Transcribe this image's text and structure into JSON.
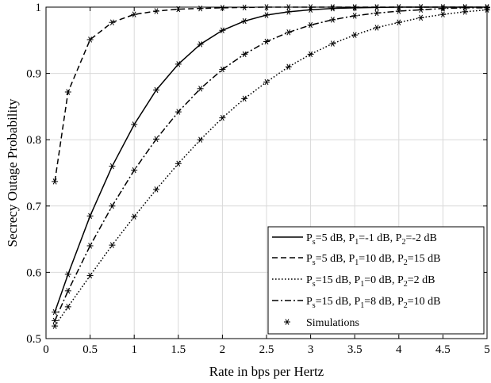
{
  "chart_data": {
    "type": "line",
    "title": "",
    "xlabel": "Rate in bps per Hertz",
    "ylabel": "Secrecy Outage Probability",
    "xlim": [
      0,
      5
    ],
    "ylim": [
      0.5,
      1
    ],
    "x_ticks": [
      0,
      0.5,
      1,
      1.5,
      2,
      2.5,
      3,
      3.5,
      4,
      4.5,
      5
    ],
    "x_tick_labels": [
      "0",
      "0.5",
      "1",
      "1.5",
      "2",
      "2.5",
      "3",
      "3.5",
      "4",
      "4.5",
      "5"
    ],
    "y_ticks": [
      0.5,
      0.6,
      0.7,
      0.8,
      0.9,
      1
    ],
    "y_tick_labels": [
      "0.5",
      "0.6",
      "0.7",
      "0.8",
      "0.9",
      "1"
    ],
    "grid": true,
    "legend_position": "bottom-right",
    "x": [
      0.1,
      0.25,
      0.5,
      0.75,
      1,
      1.25,
      1.5,
      1.75,
      2,
      2.25,
      2.5,
      2.75,
      3,
      3.25,
      3.5,
      3.75,
      4,
      4.25,
      4.5,
      4.75,
      5
    ],
    "series": [
      {
        "legend": {
          "p": "P",
          "s1": "s",
          "t1": "=5 dB, ",
          "p2": "P",
          "s2": "1",
          "t2": "=-1 dB, ",
          "p3": "P",
          "s3": "2",
          "t3": "=-2 dB"
        },
        "style": "solid",
        "values": [
          0.54,
          0.597,
          0.685,
          0.76,
          0.823,
          0.875,
          0.914,
          0.944,
          0.965,
          0.979,
          0.988,
          0.993,
          0.996,
          0.998,
          0.999,
          0.9995,
          1,
          1,
          1,
          1,
          1
        ]
      },
      {
        "legend": {
          "p": "P",
          "s1": "s",
          "t1": "=5 dB, ",
          "p2": "P",
          "s2": "1",
          "t2": "=10 dB, ",
          "p3": "P",
          "s3": "2",
          "t3": "=15 dB"
        },
        "style": "dashed",
        "values": [
          0.737,
          0.872,
          0.951,
          0.977,
          0.989,
          0.994,
          0.997,
          0.998,
          0.999,
          0.9995,
          1,
          1,
          1,
          1,
          1,
          1,
          1,
          1,
          1,
          1,
          1
        ]
      },
      {
        "legend": {
          "p": "P",
          "s1": "s",
          "t1": "=15 dB, ",
          "p2": "P",
          "s2": "1",
          "t2": "=0 dB, ",
          "p3": "P",
          "s3": "2",
          "t3": "=2 dB"
        },
        "style": "dotted",
        "values": [
          0.519,
          0.548,
          0.595,
          0.641,
          0.684,
          0.725,
          0.764,
          0.8,
          0.833,
          0.862,
          0.887,
          0.91,
          0.929,
          0.945,
          0.958,
          0.969,
          0.977,
          0.984,
          0.989,
          0.993,
          0.996
        ]
      },
      {
        "legend": {
          "p": "P",
          "s1": "s",
          "t1": "=15 dB, ",
          "p2": "P",
          "s2": "1",
          "t2": "=8 dB, ",
          "p3": "P",
          "s3": "2",
          "t3": "=10 dB"
        },
        "style": "dashdot",
        "values": [
          0.527,
          0.572,
          0.64,
          0.7,
          0.754,
          0.801,
          0.842,
          0.877,
          0.906,
          0.929,
          0.948,
          0.962,
          0.973,
          0.981,
          0.987,
          0.991,
          0.994,
          0.996,
          0.998,
          0.999,
          0.999
        ]
      }
    ],
    "simulation_legend": "Simulations"
  }
}
